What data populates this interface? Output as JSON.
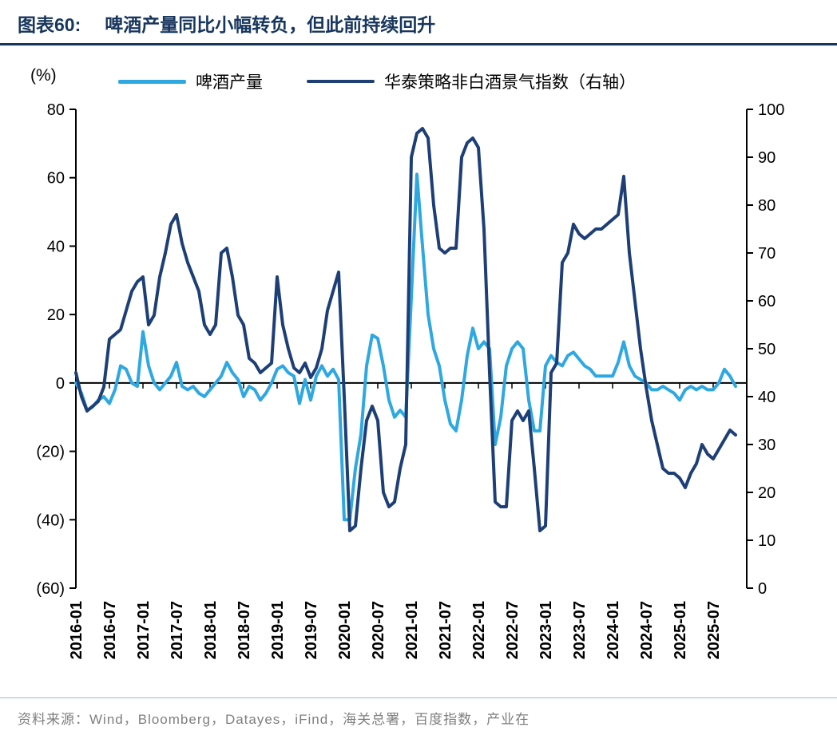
{
  "header": {
    "figure_label": "图表60:",
    "title": "啤酒产量同比小幅转负，但此前持续回升",
    "accent_color": "#17365D"
  },
  "legend": [
    {
      "label": "啤酒产量",
      "color": "#2FA8E1"
    },
    {
      "label": "华泰策略非白酒景气指数（右轴）",
      "color": "#1E3F76"
    }
  ],
  "chart": {
    "left_axis_unit": "(%)"
  },
  "footer": {
    "source": "资料来源：Wind，Bloomberg，Datayes，iFind，海关总署，百度指数，产业在"
  },
  "chart_data": {
    "type": "line",
    "title": "啤酒产量同比小幅转负，但此前持续回升",
    "legend_position": "top",
    "grid": false,
    "x_tick_interval": 6,
    "left_axis": {
      "unit": "(%)",
      "min": -60,
      "max": 80,
      "ticks": [
        80,
        60,
        40,
        20,
        0,
        -20,
        -40,
        -60
      ],
      "negative_format": "parentheses"
    },
    "right_axis": {
      "min": 0,
      "max": 100,
      "ticks": [
        100,
        90,
        80,
        70,
        60,
        50,
        40,
        30,
        20,
        10,
        0
      ]
    },
    "x": [
      "2016-01",
      "2016-02",
      "2016-03",
      "2016-04",
      "2016-05",
      "2016-06",
      "2016-07",
      "2016-08",
      "2016-09",
      "2016-10",
      "2016-11",
      "2016-12",
      "2017-01",
      "2017-02",
      "2017-03",
      "2017-04",
      "2017-05",
      "2017-06",
      "2017-07",
      "2017-08",
      "2017-09",
      "2017-10",
      "2017-11",
      "2017-12",
      "2018-01",
      "2018-02",
      "2018-03",
      "2018-04",
      "2018-05",
      "2018-06",
      "2018-07",
      "2018-08",
      "2018-09",
      "2018-10",
      "2018-11",
      "2018-12",
      "2019-01",
      "2019-02",
      "2019-03",
      "2019-04",
      "2019-05",
      "2019-06",
      "2019-07",
      "2019-08",
      "2019-09",
      "2019-10",
      "2019-11",
      "2019-12",
      "2020-01",
      "2020-02",
      "2020-03",
      "2020-04",
      "2020-05",
      "2020-06",
      "2020-07",
      "2020-08",
      "2020-09",
      "2020-10",
      "2020-11",
      "2020-12",
      "2021-01",
      "2021-02",
      "2021-03",
      "2021-04",
      "2021-05",
      "2021-06",
      "2021-07",
      "2021-08",
      "2021-09",
      "2021-10",
      "2021-11",
      "2021-12",
      "2022-01",
      "2022-02",
      "2022-03",
      "2022-04",
      "2022-05",
      "2022-06",
      "2022-07",
      "2022-08",
      "2022-09",
      "2022-10",
      "2022-11",
      "2022-12",
      "2023-01",
      "2023-02",
      "2023-03",
      "2023-04",
      "2023-05",
      "2023-06",
      "2023-07",
      "2023-08",
      "2023-09",
      "2023-10",
      "2023-11",
      "2023-12",
      "2024-01",
      "2024-02",
      "2024-03",
      "2024-04",
      "2024-05",
      "2024-06",
      "2024-07",
      "2024-08",
      "2024-09",
      "2024-10",
      "2024-11",
      "2024-12",
      "2025-01",
      "2025-02",
      "2025-03",
      "2025-04",
      "2025-05",
      "2025-06",
      "2025-07",
      "2025-08",
      "2025-09",
      "2025-10",
      "2025-11"
    ],
    "series": [
      {
        "name": "啤酒产量",
        "axis": "left",
        "color": "#2FA8E1",
        "values": [
          0,
          -3,
          -8,
          -7,
          -5,
          -4,
          -6,
          -2,
          5,
          4,
          0,
          -1,
          15,
          5,
          0,
          -2,
          0,
          2,
          6,
          -1,
          -2,
          -1,
          -3,
          -4,
          -2,
          0,
          2,
          6,
          3,
          1,
          -4,
          -1,
          -2,
          -5,
          -3,
          0,
          4,
          5,
          3,
          2,
          -6,
          1,
          -5,
          2,
          5,
          2,
          4,
          1,
          -40,
          -40,
          -25,
          -15,
          5,
          14,
          13,
          5,
          -5,
          -10,
          -8,
          -10,
          25,
          61,
          40,
          20,
          10,
          5,
          -5,
          -12,
          -14,
          -5,
          8,
          16,
          10,
          12,
          10,
          -18,
          -10,
          5,
          10,
          12,
          10,
          -5,
          -14,
          -14,
          5,
          8,
          6,
          5,
          8,
          9,
          7,
          5,
          4,
          2,
          2,
          2,
          2,
          6,
          12,
          5,
          2,
          1,
          0,
          -2,
          -2,
          -1,
          -2,
          -3,
          -5,
          -2,
          -1,
          -2,
          -1,
          -2,
          -2,
          0,
          4,
          2,
          -1
        ]
      },
      {
        "name": "华泰策略非白酒景气指数（右轴）",
        "axis": "right",
        "color": "#1E3F76",
        "values": [
          45,
          40,
          37,
          38,
          39,
          42,
          52,
          53,
          54,
          58,
          62,
          64,
          65,
          55,
          57,
          65,
          70,
          76,
          78,
          72,
          68,
          65,
          62,
          55,
          53,
          55,
          70,
          71,
          65,
          57,
          55,
          48,
          47,
          45,
          46,
          47,
          65,
          55,
          50,
          46,
          45,
          47,
          44,
          46,
          50,
          58,
          62,
          66,
          40,
          12,
          13,
          25,
          35,
          38,
          35,
          20,
          17,
          18,
          25,
          30,
          90,
          95,
          96,
          94,
          80,
          71,
          70,
          71,
          71,
          90,
          93,
          94,
          92,
          75,
          45,
          18,
          17,
          17,
          35,
          37,
          35,
          37,
          25,
          12,
          13,
          45,
          47,
          68,
          70,
          76,
          74,
          73,
          74,
          75,
          75,
          76,
          77,
          78,
          86,
          70,
          60,
          50,
          42,
          35,
          30,
          25,
          24,
          24,
          23,
          21,
          24,
          26,
          30,
          28,
          27,
          29,
          31,
          33,
          32
        ]
      }
    ]
  }
}
